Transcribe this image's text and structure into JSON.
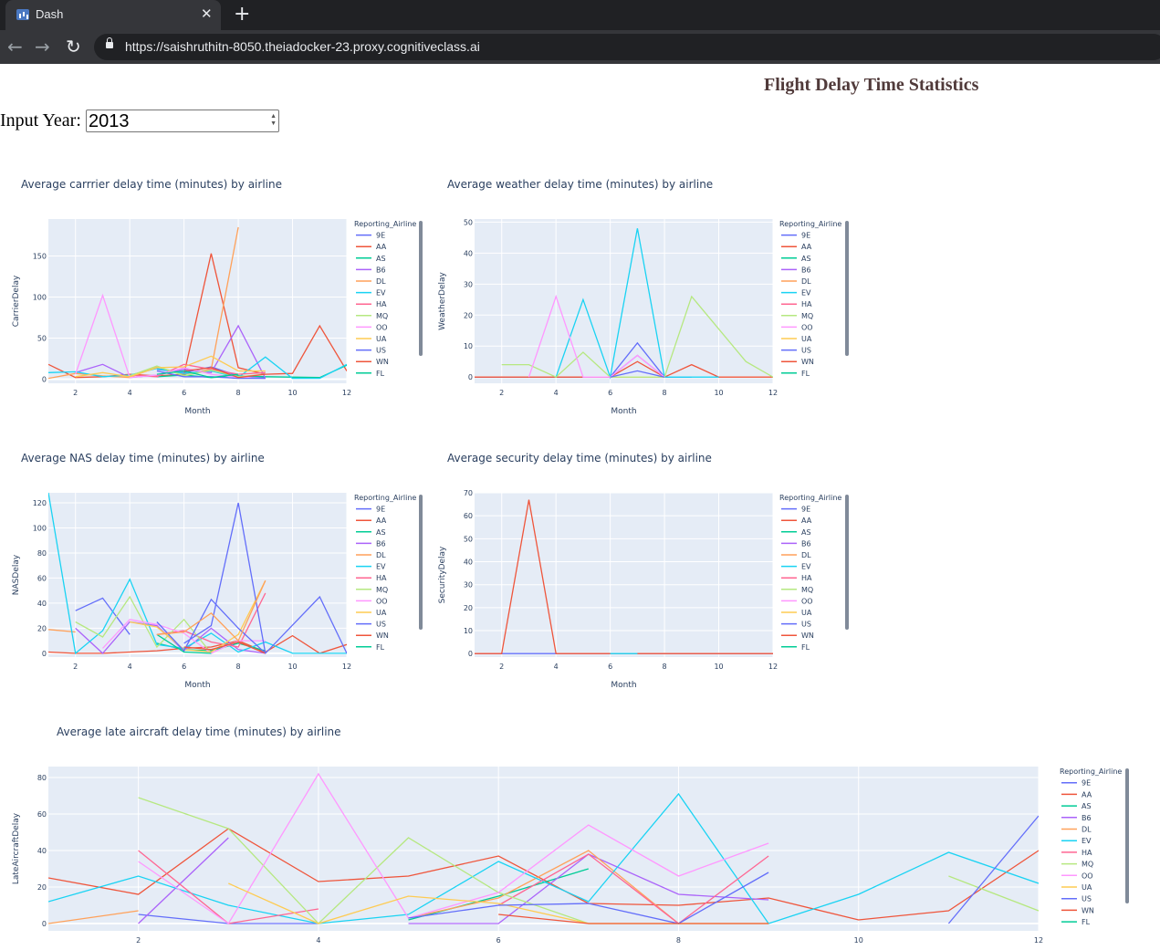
{
  "browser": {
    "tab_title": "Dash",
    "tab_close": "✕",
    "new_tab": "+",
    "back": "←",
    "forward": "→",
    "reload": "↻",
    "url": "https://saishruthitn-8050.theiadocker-23.proxy.cognitiveclass.ai"
  },
  "page": {
    "title": "Flight Delay Time Statistics",
    "year_label": "Input Year:",
    "year_value": "2013"
  },
  "legend_title": "Reporting_Airline",
  "airlines": [
    "9E",
    "AA",
    "AS",
    "B6",
    "DL",
    "EV",
    "HA",
    "MQ",
    "OO",
    "UA",
    "US",
    "WN",
    "FL"
  ],
  "colors": [
    "#636efa",
    "#EF553B",
    "#00cc96",
    "#ab63fa",
    "#FFA15A",
    "#19d3f3",
    "#FF6692",
    "#B6E880",
    "#FF97FF",
    "#FECB52",
    "#636efa",
    "#EF553B",
    "#00cc96"
  ],
  "chart_data": [
    {
      "type": "line",
      "title": "Average carrrier delay time (minutes) by airline",
      "xlabel": "Month",
      "ylabel": "CarrierDelay",
      "xlim": [
        1,
        12
      ],
      "ylim": [
        -5,
        195
      ],
      "xticks": [
        2,
        4,
        6,
        8,
        10,
        12
      ],
      "yticks": [
        0,
        50,
        100,
        150
      ],
      "series": [
        {
          "name": "9E",
          "x": [
            5,
            6,
            7,
            8,
            9
          ],
          "y": [
            12,
            8,
            15,
            4,
            2
          ]
        },
        {
          "name": "AA",
          "x": [
            1,
            2,
            3,
            4,
            5,
            6,
            7,
            8,
            9,
            10,
            11,
            12
          ],
          "y": [
            18,
            2,
            3,
            6,
            4,
            6,
            153,
            14,
            6,
            7,
            65,
            10
          ]
        },
        {
          "name": "AS",
          "x": [
            5,
            6,
            7,
            8,
            9,
            11,
            12
          ],
          "y": [
            3,
            5,
            2,
            4,
            3,
            2,
            17
          ]
        },
        {
          "name": "B6",
          "x": [
            2,
            3,
            4,
            5,
            6,
            7,
            8,
            9
          ],
          "y": [
            8,
            18,
            2,
            5,
            12,
            8,
            65,
            1
          ]
        },
        {
          "name": "DL",
          "x": [
            1,
            2,
            3,
            4,
            5,
            6,
            7,
            8
          ],
          "y": [
            1,
            7,
            4,
            2,
            15,
            6,
            12,
            185
          ]
        },
        {
          "name": "EV",
          "x": [
            1,
            2,
            3,
            4,
            5,
            6,
            7,
            8,
            9,
            10,
            11,
            12
          ],
          "y": [
            8,
            9,
            3,
            5,
            13,
            7,
            10,
            2,
            27,
            1,
            1,
            18
          ]
        },
        {
          "name": "HA",
          "x": [
            4,
            5,
            6,
            7,
            8,
            9
          ],
          "y": [
            5,
            3,
            18,
            12,
            6,
            8
          ]
        },
        {
          "name": "MQ",
          "x": [
            4,
            5,
            6,
            7,
            8,
            9
          ],
          "y": [
            4,
            16,
            4,
            11,
            3,
            6
          ]
        },
        {
          "name": "OO",
          "x": [
            2,
            3,
            4,
            5,
            6,
            7,
            8,
            9
          ],
          "y": [
            6,
            102,
            2,
            5,
            14,
            6,
            2,
            1
          ]
        },
        {
          "name": "UA",
          "x": [
            2,
            3,
            4,
            5,
            6,
            7,
            8,
            9
          ],
          "y": [
            3,
            8,
            3,
            14,
            15,
            28,
            10,
            10
          ]
        },
        {
          "name": "US",
          "x": [
            5,
            6,
            7,
            8,
            9
          ],
          "y": [
            10,
            3,
            3,
            1,
            1
          ]
        },
        {
          "name": "WN",
          "x": [
            6,
            7,
            8,
            9
          ],
          "y": [
            10,
            14,
            2,
            6
          ]
        },
        {
          "name": "FL",
          "x": [
            5,
            6,
            7,
            8
          ],
          "y": [
            6,
            10,
            2,
            6
          ]
        }
      ]
    },
    {
      "type": "line",
      "title": "Average weather delay time (minutes) by airline",
      "xlabel": "Month",
      "ylabel": "WeatherDelay",
      "xlim": [
        1,
        12
      ],
      "ylim": [
        -2,
        51
      ],
      "xticks": [
        2,
        4,
        6,
        8,
        10,
        12
      ],
      "yticks": [
        0,
        10,
        20,
        30,
        40,
        50
      ],
      "series": [
        {
          "name": "9E",
          "x": [
            1,
            2,
            3,
            4,
            5,
            6,
            7,
            8,
            9
          ],
          "y": [
            0,
            0,
            0,
            0,
            0,
            0,
            11,
            0,
            0
          ]
        },
        {
          "name": "AA",
          "x": [
            1,
            2,
            3,
            4,
            5,
            6,
            7,
            8,
            9,
            10,
            11,
            12
          ],
          "y": [
            0,
            0,
            0,
            0,
            0,
            0,
            5,
            0,
            4,
            0,
            0,
            0
          ]
        },
        {
          "name": "B6",
          "x": [
            6,
            7,
            8
          ],
          "y": [
            0,
            7,
            0
          ]
        },
        {
          "name": "DL",
          "x": [
            6,
            7,
            8
          ],
          "y": [
            0,
            0,
            0
          ]
        },
        {
          "name": "EV",
          "x": [
            4,
            5,
            6,
            7,
            8,
            9,
            10
          ],
          "y": [
            0,
            25,
            0,
            48,
            0,
            0,
            0
          ]
        },
        {
          "name": "MQ",
          "x": [
            2,
            3,
            4,
            5,
            6,
            7,
            8,
            9,
            11,
            12
          ],
          "y": [
            4,
            4,
            0,
            8,
            0,
            0,
            0,
            26,
            5,
            0
          ]
        },
        {
          "name": "OO",
          "x": [
            3,
            4,
            5,
            6,
            7,
            8
          ],
          "y": [
            0,
            26,
            0,
            0,
            7,
            0
          ]
        },
        {
          "name": "US",
          "x": [
            6,
            7,
            8
          ],
          "y": [
            0,
            2,
            0
          ]
        }
      ]
    },
    {
      "type": "line",
      "title": "Average NAS delay time (minutes) by airline",
      "xlabel": "Month",
      "ylabel": "NASDelay",
      "xlim": [
        1,
        12
      ],
      "ylim": [
        -3,
        128
      ],
      "xticks": [
        2,
        4,
        6,
        8,
        10,
        12
      ],
      "yticks": [
        0,
        20,
        40,
        60,
        80,
        100,
        120
      ],
      "series": [
        {
          "name": "9E",
          "x": [
            2,
            3,
            4
          ],
          "y": [
            34,
            44,
            15
          ]
        },
        {
          "name": "AA",
          "x": [
            1,
            2,
            3,
            4,
            5,
            6,
            7,
            8,
            9,
            10,
            11,
            12
          ],
          "y": [
            1,
            0,
            0,
            1,
            2,
            4,
            5,
            10,
            1,
            14,
            0,
            7
          ]
        },
        {
          "name": "AS",
          "x": [
            5,
            6,
            7,
            8,
            9
          ],
          "y": [
            8,
            3,
            2,
            8,
            2
          ]
        },
        {
          "name": "B6",
          "x": [
            2,
            3,
            4,
            5,
            6,
            7,
            8,
            9
          ],
          "y": [
            20,
            0,
            25,
            22,
            2,
            20,
            3,
            0
          ]
        },
        {
          "name": "DL",
          "x": [
            1,
            2
          ],
          "y": [
            19,
            17
          ]
        },
        {
          "name": "EV",
          "x": [
            1,
            2,
            3,
            4,
            5,
            6,
            7,
            8,
            9,
            10,
            11,
            12
          ],
          "y": [
            128,
            0,
            18,
            59,
            7,
            4,
            16,
            1,
            9,
            0,
            0,
            0
          ]
        },
        {
          "name": "HA",
          "x": [
            5,
            6,
            7,
            8,
            9
          ],
          "y": [
            15,
            18,
            9,
            5,
            48
          ]
        },
        {
          "name": "MQ",
          "x": [
            2,
            3,
            4,
            5,
            6,
            7
          ],
          "y": [
            25,
            13,
            45,
            5,
            27,
            0
          ]
        },
        {
          "name": "OO",
          "x": [
            3,
            4,
            5,
            6,
            7,
            8,
            9
          ],
          "y": [
            4,
            27,
            23,
            16,
            0,
            10,
            10
          ]
        },
        {
          "name": "UA",
          "x": [
            4,
            5,
            6,
            7,
            8,
            9
          ],
          "y": [
            25,
            21,
            3,
            1,
            15,
            58
          ]
        },
        {
          "name": "US",
          "x": [
            5,
            6,
            7,
            8,
            9,
            11,
            12
          ],
          "y": [
            25,
            2,
            43,
            20,
            0,
            45,
            0
          ]
        },
        {
          "name": "WN",
          "x": [
            6,
            7,
            8,
            9
          ],
          "y": [
            5,
            3,
            9,
            0
          ]
        },
        {
          "name": "FL",
          "x": [
            5,
            6,
            7
          ],
          "y": [
            15,
            1,
            0
          ]
        },
        {
          "name": "9E",
          "x": [
            6,
            7,
            8,
            9
          ],
          "y": [
            8,
            22,
            120,
            0
          ]
        },
        {
          "name": "DL",
          "x": [
            5,
            6,
            7,
            8,
            9
          ],
          "y": [
            15,
            17,
            32,
            10,
            58
          ]
        }
      ]
    },
    {
      "type": "line",
      "title": "Average security delay time (minutes) by airline",
      "xlabel": "Month",
      "ylabel": "SecurityDelay",
      "xlim": [
        1,
        12
      ],
      "ylim": [
        -1.5,
        70
      ],
      "xticks": [
        2,
        4,
        6,
        8,
        10,
        12
      ],
      "yticks": [
        0,
        10,
        20,
        30,
        40,
        50,
        60,
        70
      ],
      "series": [
        {
          "name": "9E",
          "x": [
            1,
            2,
            3,
            4,
            5,
            6,
            7,
            8,
            9,
            10,
            11,
            12
          ],
          "y": [
            0,
            0,
            0,
            0,
            0,
            0,
            0,
            0,
            0,
            0,
            0,
            0
          ]
        },
        {
          "name": "AA",
          "x": [
            1,
            2,
            3,
            4,
            5,
            6,
            7,
            8,
            9,
            10,
            11,
            12
          ],
          "y": [
            0,
            0,
            67,
            0,
            0,
            0,
            0,
            0,
            0,
            0,
            0,
            0
          ]
        },
        {
          "name": "EV",
          "x": [
            6,
            7
          ],
          "y": [
            0,
            0
          ]
        }
      ]
    },
    {
      "type": "line",
      "title": "Average late aircraft delay time (minutes) by airline",
      "xlabel": "Month",
      "ylabel": "LateAircraftDelay",
      "xlim": [
        1,
        12
      ],
      "ylim": [
        -4,
        86
      ],
      "xticks": [
        2,
        4,
        6,
        8,
        10,
        12
      ],
      "yticks": [
        0,
        20,
        40,
        60,
        80
      ],
      "series": [
        {
          "name": "9E",
          "x": [
            2,
            3,
            4
          ],
          "y": [
            5,
            0,
            0
          ]
        },
        {
          "name": "AA",
          "x": [
            1,
            2,
            3,
            4,
            5,
            6,
            7,
            8,
            9,
            10,
            11,
            12
          ],
          "y": [
            25,
            16,
            52,
            23,
            26,
            37,
            11,
            10,
            14,
            2,
            7,
            40
          ]
        },
        {
          "name": "AS",
          "x": [
            5,
            6,
            7
          ],
          "y": [
            2,
            15,
            30
          ]
        },
        {
          "name": "B6",
          "x": [
            2,
            3
          ],
          "y": [
            0,
            47
          ]
        },
        {
          "name": "B6",
          "x": [
            5,
            6,
            7,
            8,
            9
          ],
          "y": [
            0,
            0,
            38,
            16,
            13
          ]
        },
        {
          "name": "DL",
          "x": [
            1,
            2
          ],
          "y": [
            0,
            7
          ]
        },
        {
          "name": "DL",
          "x": [
            5,
            6,
            7,
            8
          ],
          "y": [
            3,
            14,
            40,
            0
          ]
        },
        {
          "name": "EV",
          "x": [
            1,
            2,
            3,
            4,
            5,
            6,
            7,
            8,
            9,
            10,
            11,
            12
          ],
          "y": [
            12,
            26,
            10,
            0,
            5,
            34,
            12,
            71,
            0,
            16,
            39,
            22
          ]
        },
        {
          "name": "HA",
          "x": [
            2,
            3,
            4
          ],
          "y": [
            40,
            0,
            8
          ]
        },
        {
          "name": "HA",
          "x": [
            6,
            7,
            8,
            9
          ],
          "y": [
            10,
            38,
            0,
            37
          ]
        },
        {
          "name": "MQ",
          "x": [
            2,
            3,
            4,
            5,
            6,
            7,
            8,
            9
          ],
          "y": [
            69,
            52,
            0,
            47,
            17,
            0,
            0,
            0
          ]
        },
        {
          "name": "MQ",
          "x": [
            11,
            12
          ],
          "y": [
            26,
            7
          ]
        },
        {
          "name": "OO",
          "x": [
            2,
            3,
            4,
            5,
            6,
            7,
            8,
            9
          ],
          "y": [
            34,
            0,
            82,
            3,
            17,
            54,
            26,
            44
          ]
        },
        {
          "name": "UA",
          "x": [
            3,
            4,
            5,
            6,
            7,
            8,
            9
          ],
          "y": [
            22,
            0,
            15,
            11,
            0,
            0,
            0
          ]
        },
        {
          "name": "US",
          "x": [
            5,
            6,
            7,
            8,
            9
          ],
          "y": [
            3,
            10,
            11,
            0,
            28
          ]
        },
        {
          "name": "US",
          "x": [
            11,
            12
          ],
          "y": [
            0,
            59
          ]
        },
        {
          "name": "WN",
          "x": [
            6,
            7,
            8,
            9
          ],
          "y": [
            5,
            0,
            0,
            0
          ]
        }
      ]
    }
  ]
}
